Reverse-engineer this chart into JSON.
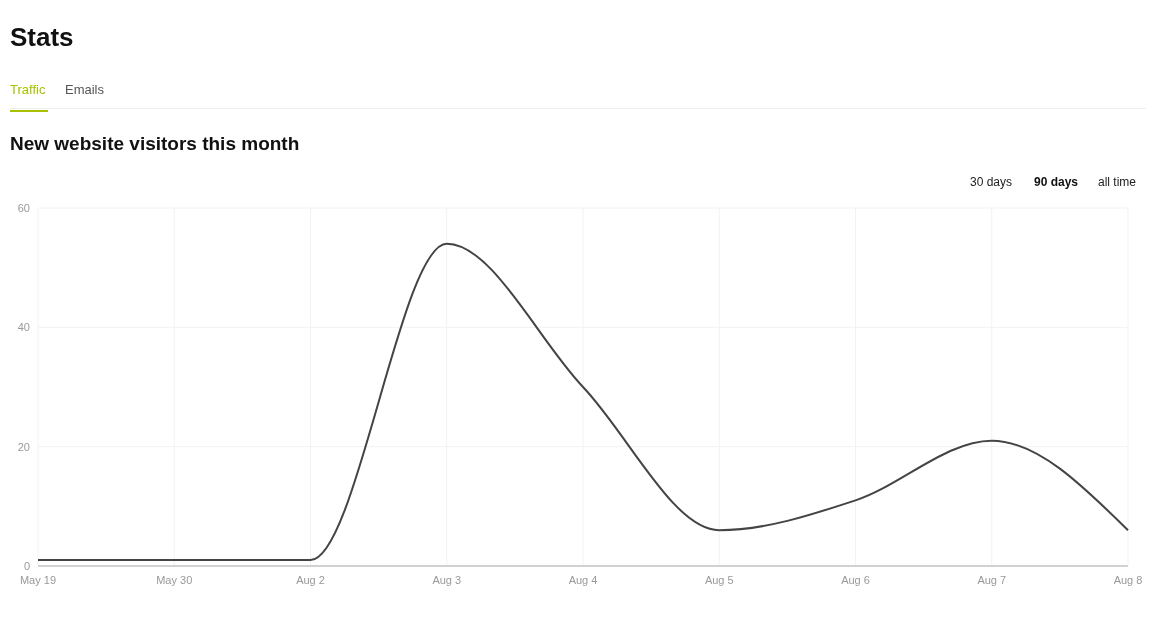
{
  "chart_data": {
    "type": "line",
    "title": "New website visitors this month",
    "annotations": [
      "Stats",
      "Traffic",
      "Emails",
      "30 days",
      "90 days",
      "all time"
    ],
    "categories": [
      "May 19",
      "May 30",
      "Aug 2",
      "Aug 3",
      "Aug 4",
      "Aug 5",
      "Aug 6",
      "Aug 7",
      "Aug 8"
    ],
    "series": [
      {
        "color": "#444444",
        "values": [
          1,
          1,
          1,
          54,
          30,
          6,
          11,
          21,
          6
        ]
      }
    ],
    "ylim": [
      0,
      60
    ],
    "yticks": [
      0,
      20,
      40,
      60
    ],
    "grid": true,
    "marker": "none",
    "line_style": "solid"
  }
}
